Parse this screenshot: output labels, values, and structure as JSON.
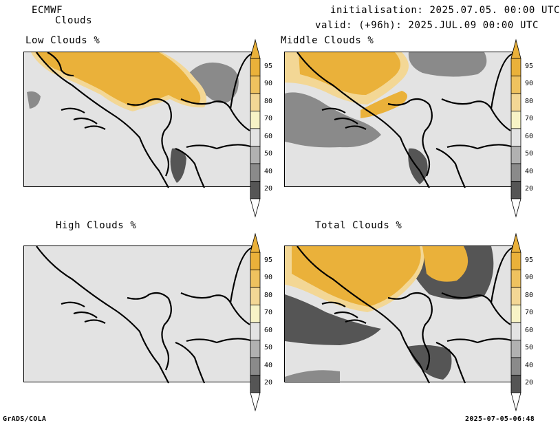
{
  "header": {
    "model": "ECMWF",
    "product": "Clouds",
    "init_line": "initialisation: 2025.07.05. 00:00 UTC",
    "valid_line": "valid: (+96h): 2025.JUL.09 00:00 UTC"
  },
  "panels": [
    {
      "id": "low",
      "title": "Low Clouds %"
    },
    {
      "id": "middle",
      "title": "Middle Clouds %"
    },
    {
      "id": "high",
      "title": "High Clouds %"
    },
    {
      "id": "total",
      "title": "Total Clouds %"
    }
  ],
  "colorbar": {
    "levels": [
      "95",
      "90",
      "80",
      "70",
      "60",
      "50",
      "40",
      "20"
    ],
    "colors": {
      "top": "#eab13a",
      "95": "#eab13a",
      "90": "#efc25f",
      "80": "#f3d795",
      "70": "#f7f3c6",
      "60": "#e3e3e3",
      "50": "#b1b1b1",
      "40": "#8a8a8a",
      "20": "#555555",
      "bottom": "#ffffff"
    }
  },
  "footer": {
    "left": "GrADS/COLA",
    "right": "2025-07-05-06:48"
  }
}
